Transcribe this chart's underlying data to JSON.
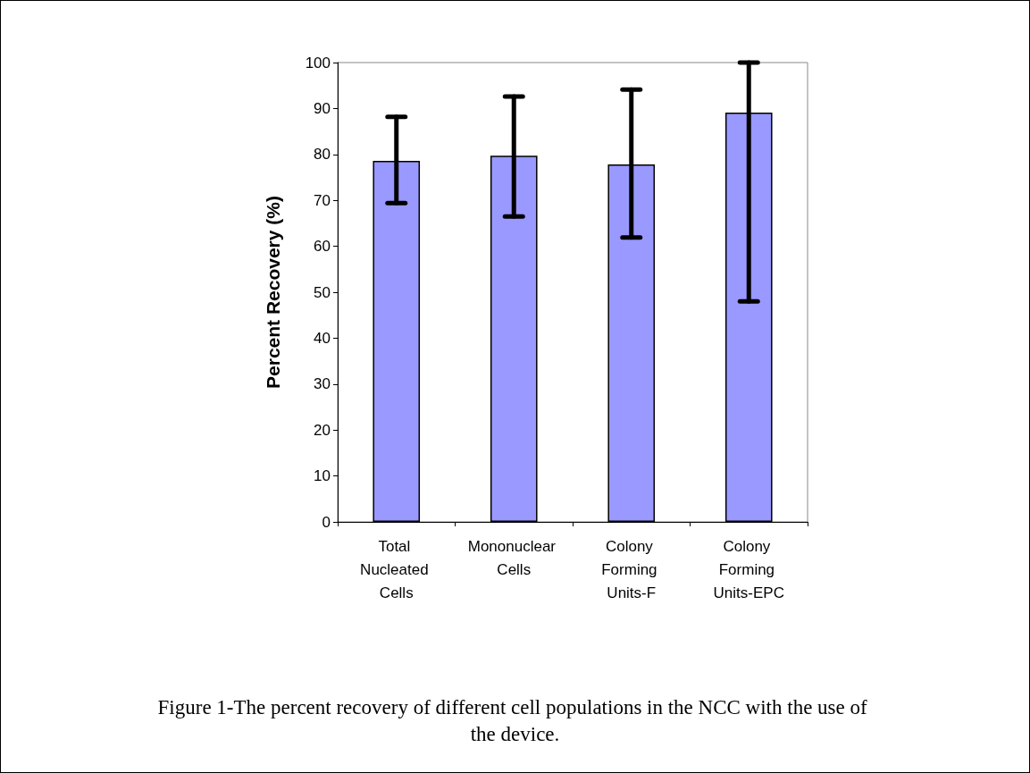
{
  "chart_data": {
    "type": "bar",
    "categories": [
      "Total Nucleated Cells",
      "Mononuclear Cells",
      "Colony Forming Units-F",
      "Colony Forming Units-EPC"
    ],
    "values": [
      78.6,
      79.7,
      77.8,
      89.1
    ],
    "errors": [
      [
        69.4,
        88.2
      ],
      [
        66.5,
        92.6
      ],
      [
        61.9,
        94.1
      ],
      [
        48.0,
        100
      ]
    ],
    "color": "#9999ff",
    "ylabel": "Percent Recovery (%)",
    "ylim": [
      0,
      100
    ],
    "yticks": [
      0,
      10,
      20,
      30,
      40,
      50,
      60,
      70,
      80,
      90,
      100
    ],
    "grid": false,
    "annotations": [
      "Figure 1-The percent recovery of different cell populations in the NCC with the use of the device."
    ]
  }
}
